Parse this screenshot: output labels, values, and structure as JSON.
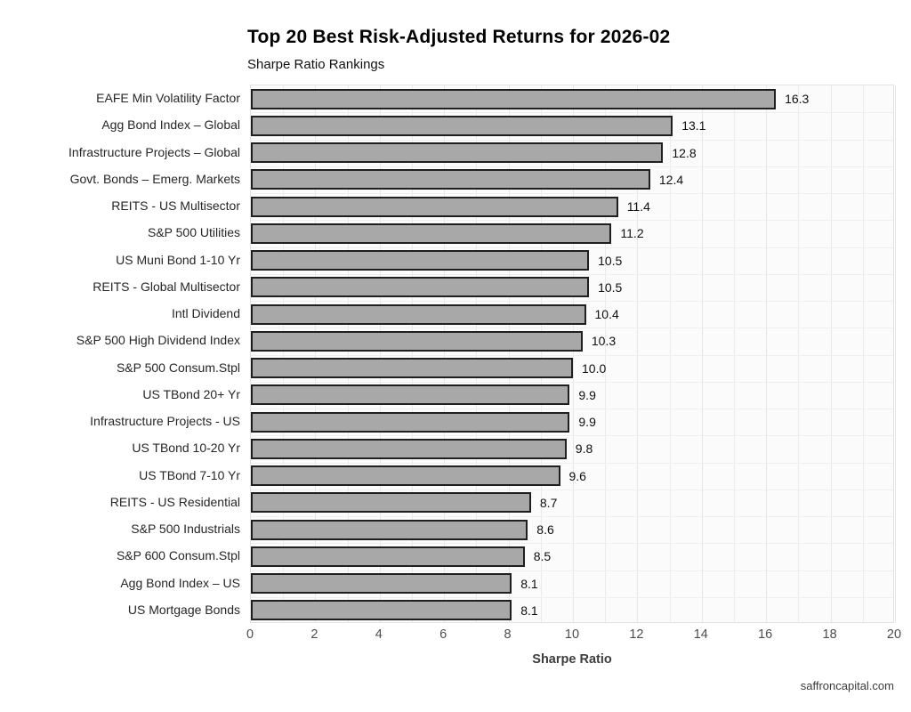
{
  "header": {
    "title": "Top 20 Best Risk-Adjusted Returns for 2026-02",
    "subtitle": "Sharpe Ratio Rankings"
  },
  "footer": {
    "credit": "saffroncapital.com"
  },
  "chart_data": {
    "type": "bar",
    "orientation": "horizontal",
    "title": "Top 20 Best Risk-Adjusted Returns for 2026-02",
    "subtitle": "Sharpe Ratio Rankings",
    "categories": [
      "EAFE Min Volatility Factor",
      "Agg Bond Index – Global",
      "Infrastructure Projects – Global",
      "Govt. Bonds – Emerg. Markets",
      "REITS - US Multisector",
      "S&P 500 Utilities",
      "US Muni Bond 1-10 Yr",
      "REITS - Global Multisector",
      "Intl Dividend",
      "S&P 500 High Dividend Index",
      "S&P 500 Consum.Stpl",
      "US TBond 20+ Yr",
      "Infrastructure Projects - US",
      "US TBond 10-20 Yr",
      "US TBond 7-10 Yr",
      "REITS - US Residential",
      "S&P 500 Industrials",
      "S&P 600 Consum.Stpl",
      "Agg Bond Index – US",
      "US Mortgage Bonds"
    ],
    "values": [
      16.3,
      13.1,
      12.8,
      12.4,
      11.4,
      11.2,
      10.5,
      10.5,
      10.4,
      10.3,
      10.0,
      9.9,
      9.9,
      9.8,
      9.6,
      8.7,
      8.6,
      8.5,
      8.1,
      8.1
    ],
    "value_labels": [
      "16.3",
      "13.1",
      "12.8",
      "12.4",
      "11.4",
      "11.2",
      "10.5",
      "10.5",
      "10.4",
      "10.3",
      "10.0",
      "9.9",
      "9.9",
      "9.8",
      "9.6",
      "8.7",
      "8.6",
      "8.5",
      "8.1",
      "8.1"
    ],
    "xlabel": "Sharpe Ratio",
    "ylabel": "",
    "xlim": [
      0,
      20
    ],
    "xticks": [
      0,
      2,
      4,
      6,
      8,
      10,
      12,
      14,
      16,
      18,
      20
    ],
    "grid": true,
    "legend_position": "none",
    "bar_fill_color": "#a8a8a8",
    "bar_border_color": "#1f1f1f",
    "panel_background_color": "#fbfbfb",
    "gridline_color": "#ebebeb"
  }
}
